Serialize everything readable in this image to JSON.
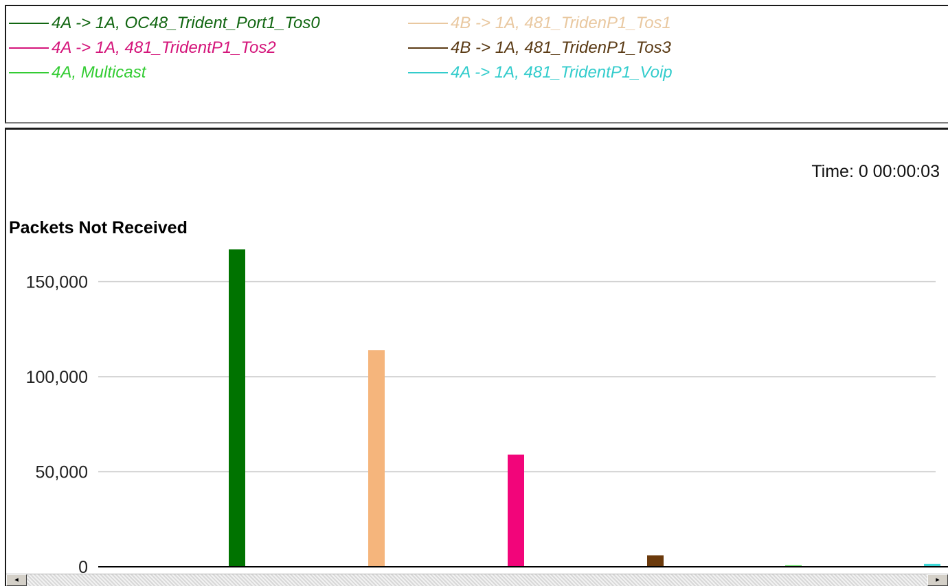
{
  "legend": [
    {
      "label": "4A -> 1A, OC48_Trident_Port1_Tos0",
      "color": "#116611"
    },
    {
      "label": "4B -> 1A, 481_TridenP1_Tos1",
      "color": "#e9c8a0"
    },
    {
      "label": "4A -> 1A, 481_TridentP1_Tos2",
      "color": "#d4147a"
    },
    {
      "label": "4B -> 1A, 481_TridenP1_Tos3",
      "color": "#5a3a14"
    },
    {
      "label": "4A, Multicast",
      "color": "#33cc33"
    },
    {
      "label": "4A -> 1A, 481_TridentP1_Voip",
      "color": "#33cccc"
    }
  ],
  "time_readout": "Time: 0 00:00:03",
  "chart_data": {
    "type": "bar",
    "title": "",
    "ylabel": "Packets Not Received",
    "xlabel": "",
    "ylim": [
      0,
      165000
    ],
    "yticks": [
      0,
      50000,
      100000,
      150000
    ],
    "ytick_labels": [
      "0",
      "50,000",
      "100,000",
      "150,000"
    ],
    "grid": true,
    "series": [
      {
        "name": "4A -> 1A, OC48_Trident_Port1_Tos0",
        "value": 167000,
        "color": "#007300"
      },
      {
        "name": "4B -> 1A, 481_TridenP1_Tos1",
        "value": 114000,
        "color": "#f5b57c"
      },
      {
        "name": "4A -> 1A, 481_TridentP1_Tos2",
        "value": 59000,
        "color": "#f2057a"
      },
      {
        "name": "4B -> 1A, 481_TridenP1_Tos3",
        "value": 6000,
        "color": "#6b3a0c"
      },
      {
        "name": "4A, Multicast",
        "value": 800,
        "color": "#55e055"
      },
      {
        "name": "4A -> 1A, 481_TridentP1_Voip",
        "value": 1500,
        "color": "#3fd8d8"
      }
    ]
  },
  "scrollbar": {
    "left_arrow": "◂",
    "right_arrow": "▸"
  }
}
